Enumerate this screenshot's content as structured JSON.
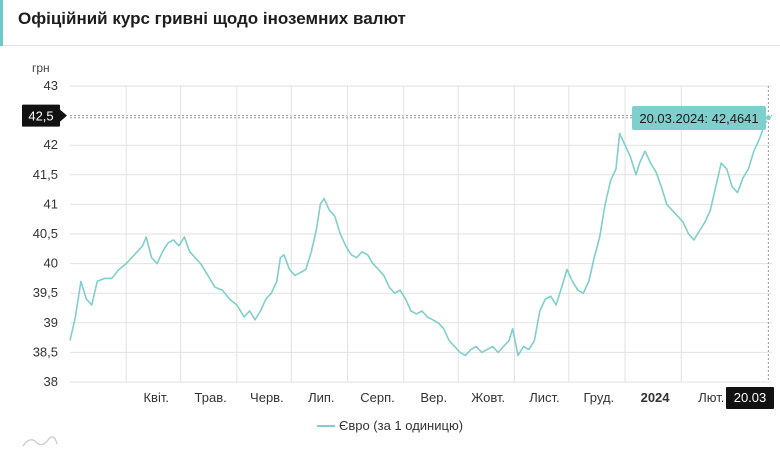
{
  "header": {
    "title": "Офіційний курс гривні щодо іноземних валют"
  },
  "colors": {
    "line": "#7fcfcd",
    "tooltip_bg": "#7fcfcd",
    "marker_bg": "#111111",
    "grid": "#e2e2e2"
  },
  "chart_data": {
    "type": "line",
    "ylabel": "грн",
    "ylim": [
      38,
      43
    ],
    "yticks": [
      "43",
      "42,5",
      "42",
      "41,5",
      "41",
      "40,5",
      "40",
      "39,5",
      "39",
      "38,5",
      "38"
    ],
    "yticks_values": [
      43,
      42.5,
      42,
      41.5,
      41,
      40.5,
      40,
      39.5,
      39,
      38.5,
      38
    ],
    "xticks": [
      {
        "label": "Квіт.",
        "date": "2023-04-01",
        "bold": false
      },
      {
        "label": "Трав.",
        "date": "2023-05-01",
        "bold": false
      },
      {
        "label": "Черв.",
        "date": "2023-06-01",
        "bold": false
      },
      {
        "label": "Лип.",
        "date": "2023-07-01",
        "bold": false
      },
      {
        "label": "Серп.",
        "date": "2023-08-01",
        "bold": false
      },
      {
        "label": "Вер.",
        "date": "2023-09-01",
        "bold": false
      },
      {
        "label": "Жовт.",
        "date": "2023-10-01",
        "bold": false
      },
      {
        "label": "Лист.",
        "date": "2023-11-01",
        "bold": false
      },
      {
        "label": "Груд.",
        "date": "2023-12-01",
        "bold": false
      },
      {
        "label": "2024",
        "date": "2024-01-01",
        "bold": true
      },
      {
        "label": "Лют.",
        "date": "2024-02-01",
        "bold": false
      }
    ],
    "x_range": [
      "2023-03-01",
      "2024-03-22"
    ],
    "grid": true,
    "legend": "bottom",
    "crosshair": {
      "y_label": "42,5",
      "x_label": "20.03",
      "tooltip": "20.03.2024: 42,4641",
      "date": "2024-03-20",
      "value": 42.4641
    },
    "series": [
      {
        "name": "Євро (за 1 одиницю)",
        "points": [
          [
            "2023-03-01",
            38.7
          ],
          [
            "2023-03-04",
            39.1
          ],
          [
            "2023-03-07",
            39.7
          ],
          [
            "2023-03-10",
            39.4
          ],
          [
            "2023-03-13",
            39.3
          ],
          [
            "2023-03-16",
            39.7
          ],
          [
            "2023-03-20",
            39.75
          ],
          [
            "2023-03-24",
            39.75
          ],
          [
            "2023-03-28",
            39.9
          ],
          [
            "2023-04-01",
            40.0
          ],
          [
            "2023-04-04",
            40.1
          ],
          [
            "2023-04-07",
            40.2
          ],
          [
            "2023-04-10",
            40.3
          ],
          [
            "2023-04-12",
            40.45
          ],
          [
            "2023-04-15",
            40.1
          ],
          [
            "2023-04-18",
            40.0
          ],
          [
            "2023-04-21",
            40.2
          ],
          [
            "2023-04-24",
            40.35
          ],
          [
            "2023-04-27",
            40.4
          ],
          [
            "2023-04-30",
            40.3
          ],
          [
            "2023-05-03",
            40.45
          ],
          [
            "2023-05-06",
            40.2
          ],
          [
            "2023-05-09",
            40.1
          ],
          [
            "2023-05-12",
            40.0
          ],
          [
            "2023-05-16",
            39.8
          ],
          [
            "2023-05-20",
            39.6
          ],
          [
            "2023-05-24",
            39.55
          ],
          [
            "2023-05-28",
            39.4
          ],
          [
            "2023-06-01",
            39.3
          ],
          [
            "2023-06-05",
            39.1
          ],
          [
            "2023-06-08",
            39.2
          ],
          [
            "2023-06-11",
            39.05
          ],
          [
            "2023-06-14",
            39.2
          ],
          [
            "2023-06-17",
            39.4
          ],
          [
            "2023-06-20",
            39.5
          ],
          [
            "2023-06-23",
            39.7
          ],
          [
            "2023-06-25",
            40.1
          ],
          [
            "2023-06-27",
            40.15
          ],
          [
            "2023-06-30",
            39.9
          ],
          [
            "2023-07-03",
            39.8
          ],
          [
            "2023-07-06",
            39.85
          ],
          [
            "2023-07-09",
            39.9
          ],
          [
            "2023-07-12",
            40.2
          ],
          [
            "2023-07-15",
            40.6
          ],
          [
            "2023-07-17",
            41.0
          ],
          [
            "2023-07-19",
            41.1
          ],
          [
            "2023-07-22",
            40.9
          ],
          [
            "2023-07-25",
            40.8
          ],
          [
            "2023-07-28",
            40.5
          ],
          [
            "2023-07-31",
            40.3
          ],
          [
            "2023-08-03",
            40.15
          ],
          [
            "2023-08-06",
            40.1
          ],
          [
            "2023-08-09",
            40.2
          ],
          [
            "2023-08-12",
            40.15
          ],
          [
            "2023-08-15",
            40.0
          ],
          [
            "2023-08-18",
            39.9
          ],
          [
            "2023-08-21",
            39.8
          ],
          [
            "2023-08-24",
            39.6
          ],
          [
            "2023-08-27",
            39.5
          ],
          [
            "2023-08-30",
            39.55
          ],
          [
            "2023-09-02",
            39.4
          ],
          [
            "2023-09-05",
            39.2
          ],
          [
            "2023-09-08",
            39.15
          ],
          [
            "2023-09-11",
            39.2
          ],
          [
            "2023-09-14",
            39.1
          ],
          [
            "2023-09-17",
            39.05
          ],
          [
            "2023-09-20",
            39.0
          ],
          [
            "2023-09-23",
            38.9
          ],
          [
            "2023-09-26",
            38.7
          ],
          [
            "2023-09-29",
            38.6
          ],
          [
            "2023-10-02",
            38.5
          ],
          [
            "2023-10-05",
            38.45
          ],
          [
            "2023-10-08",
            38.55
          ],
          [
            "2023-10-11",
            38.6
          ],
          [
            "2023-10-14",
            38.5
          ],
          [
            "2023-10-17",
            38.55
          ],
          [
            "2023-10-20",
            38.6
          ],
          [
            "2023-10-23",
            38.5
          ],
          [
            "2023-10-26",
            38.6
          ],
          [
            "2023-10-29",
            38.7
          ],
          [
            "2023-10-31",
            38.9
          ],
          [
            "2023-11-03",
            38.45
          ],
          [
            "2023-11-06",
            38.6
          ],
          [
            "2023-11-09",
            38.55
          ],
          [
            "2023-11-12",
            38.7
          ],
          [
            "2023-11-15",
            39.2
          ],
          [
            "2023-11-18",
            39.4
          ],
          [
            "2023-11-21",
            39.45
          ],
          [
            "2023-11-24",
            39.3
          ],
          [
            "2023-11-27",
            39.6
          ],
          [
            "2023-11-30",
            39.9
          ],
          [
            "2023-12-03",
            39.7
          ],
          [
            "2023-12-06",
            39.55
          ],
          [
            "2023-12-09",
            39.5
          ],
          [
            "2023-12-12",
            39.7
          ],
          [
            "2023-12-15",
            40.1
          ],
          [
            "2023-12-18",
            40.45
          ],
          [
            "2023-12-21",
            41.0
          ],
          [
            "2023-12-24",
            41.4
          ],
          [
            "2023-12-27",
            41.6
          ],
          [
            "2023-12-29",
            42.2
          ],
          [
            "2024-01-01",
            42.0
          ],
          [
            "2024-01-04",
            41.8
          ],
          [
            "2024-01-07",
            41.5
          ],
          [
            "2024-01-09",
            41.7
          ],
          [
            "2024-01-12",
            41.9
          ],
          [
            "2024-01-15",
            41.7
          ],
          [
            "2024-01-18",
            41.55
          ],
          [
            "2024-01-21",
            41.3
          ],
          [
            "2024-01-24",
            41.0
          ],
          [
            "2024-01-27",
            40.9
          ],
          [
            "2024-01-30",
            40.8
          ],
          [
            "2024-02-02",
            40.7
          ],
          [
            "2024-02-05",
            40.5
          ],
          [
            "2024-02-08",
            40.4
          ],
          [
            "2024-02-11",
            40.55
          ],
          [
            "2024-02-14",
            40.7
          ],
          [
            "2024-02-17",
            40.9
          ],
          [
            "2024-02-20",
            41.3
          ],
          [
            "2024-02-23",
            41.7
          ],
          [
            "2024-02-26",
            41.6
          ],
          [
            "2024-02-29",
            41.3
          ],
          [
            "2024-03-03",
            41.2
          ],
          [
            "2024-03-06",
            41.45
          ],
          [
            "2024-03-09",
            41.6
          ],
          [
            "2024-03-12",
            41.9
          ],
          [
            "2024-03-15",
            42.1
          ],
          [
            "2024-03-18",
            42.35
          ],
          [
            "2024-03-20",
            42.4641
          ]
        ]
      }
    ]
  }
}
